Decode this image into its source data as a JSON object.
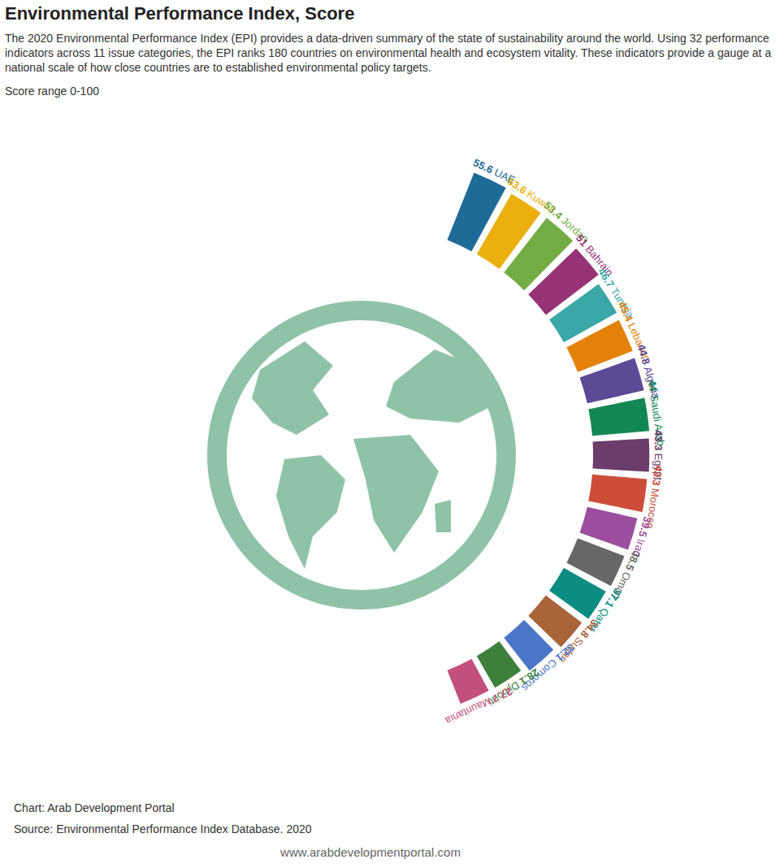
{
  "chart_data": {
    "type": "bar",
    "title": "Environmental Performance Index, Score",
    "subtitle": "The 2020 Environmental Performance Index (EPI) provides a data-driven summary of the state of sustainability around the world. Using 32 performance indicators across 11 issue categories, the EPI ranks 180 countries on environmental health and ecosystem vitality. These indicators provide a gauge at a national scale of how close countries are to established environmental policy targets.",
    "note": "Score range 0-100",
    "credit": "Chart: Arab Development Portal",
    "source": "Source: Environmental Performance Index Database. 2020",
    "url": "www.arabdevelopmentportal.com",
    "categories": [
      "UAE",
      "Kuwait",
      "Jordan",
      "Bahrain",
      "Tunisia",
      "Lebanon",
      "Algeria",
      "Saudi Arab",
      "Egypt",
      "Morocco",
      "Iraq",
      "Oman",
      "Qatar",
      "Sudan",
      "Comoros",
      "Djibouti",
      "Mauritania"
    ],
    "values": [
      55.6,
      53.6,
      53.4,
      51,
      46.7,
      45.4,
      44.8,
      44,
      43.3,
      42.3,
      39.5,
      38.5,
      37.1,
      34.8,
      32.1,
      28.1,
      27.7
    ],
    "colors": [
      "#1f6b98",
      "#ebb00d",
      "#72ad44",
      "#963276",
      "#3aa8a8",
      "#e38109",
      "#5c4a96",
      "#138753",
      "#6b3d6a",
      "#cc4e3a",
      "#9c4f9e",
      "#676767",
      "#0d8c82",
      "#a9643a",
      "#4b76c8",
      "#3e803b",
      "#c24f7d"
    ],
    "ylim": [
      0,
      100
    ],
    "data_labels": true,
    "tick_labels": false
  }
}
